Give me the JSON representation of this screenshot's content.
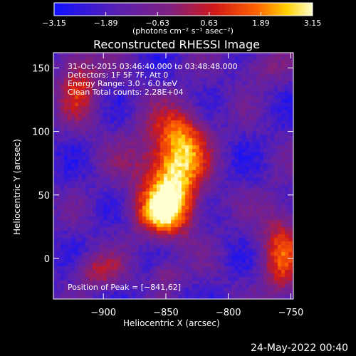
{
  "chart_data": {
    "type": "heatmap",
    "title": "Reconstructed RHESSI Image",
    "xlabel": "Heliocentric X (arcsec)",
    "ylabel": "Heliocentric Y (arcsec)",
    "xlim": [
      -940,
      -748
    ],
    "ylim": [
      -32,
      162
    ],
    "x_ticks": [
      -900,
      -850,
      -800,
      -750
    ],
    "x_tick_labels": [
      "−900",
      "−850",
      "−800",
      "−750"
    ],
    "y_ticks": [
      0,
      50,
      100,
      150
    ],
    "y_tick_labels": [
      "0",
      "50",
      "100",
      "150"
    ],
    "colorbar": {
      "min": -3.15,
      "max": 3.15,
      "ticks": [
        -3.15,
        -1.89,
        -0.63,
        0.63,
        1.89,
        3.15
      ],
      "tick_labels": [
        "−3.15",
        "−1.89",
        "−0.63",
        "0.63",
        "1.89",
        "3.15"
      ],
      "unit_label": "(photons cm⁻² s⁻¹ asec⁻²)"
    },
    "annotations": [
      "31-Oct-2015 03:46:40.000 to 03:48:48.000",
      "Detectors: 1F 5F 7F, Att 0",
      "Energy Range: 3.0 - 6.0 keV",
      "Clean    Total counts: 2.28E+04"
    ],
    "peak_label": "Position of Peak = [−841,62]",
    "peak": {
      "x": -841,
      "y": 62,
      "value": 3.15
    },
    "sources": [
      {
        "x": -843,
        "y": 60,
        "sx": 16,
        "sy": 26,
        "amp": 4.0
      },
      {
        "x": -855,
        "y": 35,
        "sx": 14,
        "sy": 12,
        "amp": 2.6
      },
      {
        "x": -835,
        "y": 98,
        "sx": 14,
        "sy": 16,
        "amp": 2.1
      },
      {
        "x": -860,
        "y": 75,
        "sx": 24,
        "sy": 30,
        "amp": 1.2
      },
      {
        "x": -920,
        "y": 140,
        "sx": 12,
        "sy": 22,
        "amp": 2.6
      },
      {
        "x": -905,
        "y": -10,
        "sx": 14,
        "sy": 10,
        "amp": 2.0
      },
      {
        "x": -850,
        "y": -12,
        "sx": 8,
        "sy": 8,
        "amp": 1.7
      },
      {
        "x": -758,
        "y": 5,
        "sx": 12,
        "sy": 28,
        "amp": 2.8
      },
      {
        "x": -775,
        "y": 150,
        "sx": 14,
        "sy": 10,
        "amp": 1.4
      }
    ],
    "background": -1.8
  },
  "footer": {
    "date": "24-May-2022 00:40"
  }
}
